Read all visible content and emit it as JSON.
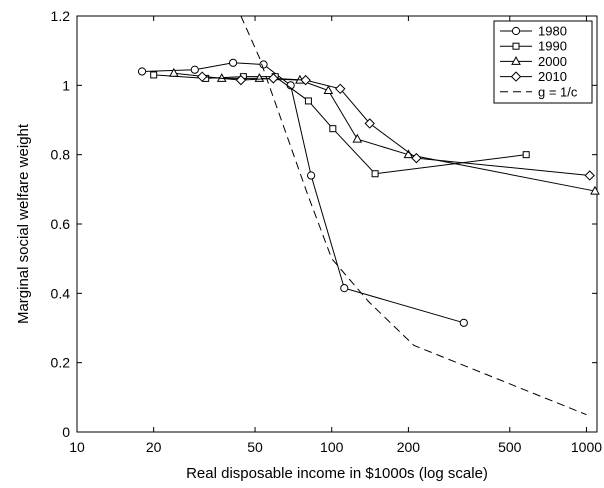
{
  "chart_data": {
    "type": "line",
    "title": "",
    "xlabel": "Real disposable income in $1000s (log scale)",
    "ylabel": "Marginal social welfare weight",
    "x_scale": "log",
    "xlim": [
      10,
      1100
    ],
    "ylim": [
      0,
      1.2
    ],
    "x_ticks": [
      10,
      20,
      50,
      100,
      200,
      500,
      1000
    ],
    "x_tick_labels": [
      "10",
      "20",
      "50",
      "100",
      "200",
      "500",
      "1000"
    ],
    "y_ticks": [
      0,
      0.2,
      0.4,
      0.6,
      0.8,
      1,
      1.2
    ],
    "y_tick_labels": [
      "0",
      "0.2",
      "0.4",
      "0.6",
      "0.8",
      "1",
      "1.2"
    ],
    "grid": false,
    "legend_position": "top-right",
    "series": [
      {
        "name": "1980",
        "marker": "circle",
        "line": "solid",
        "x": [
          18,
          29,
          41,
          54,
          69,
          83,
          112,
          330
        ],
        "y": [
          1.04,
          1.045,
          1.065,
          1.06,
          1.0,
          0.74,
          0.415,
          0.315
        ]
      },
      {
        "name": "1990",
        "marker": "square",
        "line": "solid",
        "x": [
          20,
          32,
          45,
          60,
          81,
          101,
          148,
          580
        ],
        "y": [
          1.03,
          1.02,
          1.025,
          1.025,
          0.955,
          0.875,
          0.745,
          0.8
        ]
      },
      {
        "name": "2000",
        "marker": "triangle",
        "line": "solid",
        "x": [
          24,
          37,
          52,
          75,
          97,
          126,
          200,
          1080
        ],
        "y": [
          1.035,
          1.02,
          1.02,
          1.015,
          0.985,
          0.845,
          0.8,
          0.695
        ]
      },
      {
        "name": "2010",
        "marker": "diamond",
        "line": "solid",
        "x": [
          31,
          44,
          59,
          79,
          108,
          141,
          215,
          1030
        ],
        "y": [
          1.025,
          1.015,
          1.02,
          1.015,
          0.99,
          0.89,
          0.79,
          0.74
        ]
      },
      {
        "name": "g = 1/c",
        "marker": "none",
        "line": "dashed",
        "x": [
          44,
          52,
          60,
          80,
          100,
          140,
          210,
          1000
        ],
        "y": [
          1.2,
          1.08,
          0.95,
          0.69,
          0.5,
          0.375,
          0.25,
          0.05
        ]
      }
    ]
  }
}
